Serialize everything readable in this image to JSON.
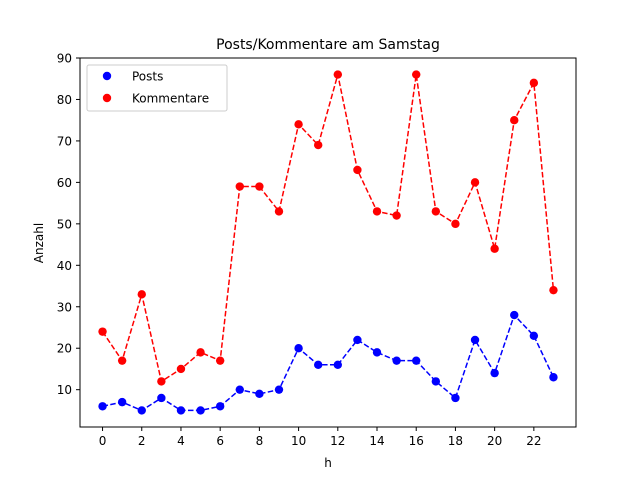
{
  "chart_data": {
    "type": "line",
    "title": "Posts/Kommentare am Samstag",
    "xlabel": "h",
    "ylabel": "Anzahl",
    "xlim": [
      -1.15,
      24.15
    ],
    "ylim": [
      1,
      90
    ],
    "xticks": [
      0,
      2,
      4,
      6,
      8,
      10,
      12,
      14,
      16,
      18,
      20,
      22
    ],
    "yticks": [
      10,
      20,
      30,
      40,
      50,
      60,
      70,
      80,
      90
    ],
    "grid": false,
    "legend_position": "top-left",
    "x": [
      0,
      1,
      2,
      3,
      4,
      5,
      6,
      7,
      8,
      9,
      10,
      11,
      12,
      13,
      14,
      15,
      16,
      17,
      18,
      19,
      20,
      21,
      22,
      23
    ],
    "series": [
      {
        "name": "Posts",
        "color": "#0000ff",
        "values": [
          6,
          7,
          5,
          8,
          5,
          5,
          6,
          10,
          9,
          10,
          20,
          16,
          16,
          22,
          19,
          17,
          17,
          12,
          8,
          22,
          14,
          28,
          23,
          13
        ]
      },
      {
        "name": "Kommentare",
        "color": "#ff0000",
        "values": [
          24,
          17,
          33,
          12,
          15,
          19,
          17,
          59,
          59,
          53,
          74,
          69,
          86,
          63,
          53,
          52,
          86,
          53,
          50,
          60,
          44,
          75,
          84,
          34
        ]
      }
    ]
  }
}
